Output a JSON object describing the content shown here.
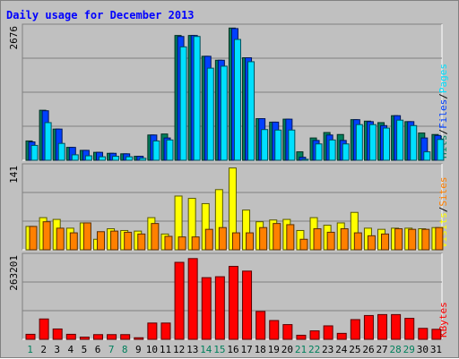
{
  "title": "Daily usage for December 2013",
  "colors": {
    "background": "#c0c0c0",
    "title": "#0000ff",
    "hits": "#00805c",
    "files": "#0040ff",
    "pages": "#00e0ff",
    "visits": "#ffff00",
    "sites": "#ff8000",
    "kbytes": "#ff0000",
    "weekend_day": "#00805c",
    "weekday_day": "#000000"
  },
  "chart_data": [
    {
      "type": "bar",
      "title": "Daily usage for December 2013",
      "panel": "hits-files-pages",
      "ymax_label": "2676",
      "ymax": 2676,
      "legend": [
        "Pages",
        "/",
        "Files",
        "/",
        "Hits"
      ],
      "categories": [
        "1",
        "2",
        "3",
        "4",
        "5",
        "6",
        "7",
        "8",
        "9",
        "10",
        "11",
        "12",
        "13",
        "14",
        "15",
        "16",
        "17",
        "18",
        "19",
        "20",
        "21",
        "22",
        "23",
        "24",
        "25",
        "26",
        "27",
        "28",
        "29",
        "30",
        "31"
      ],
      "series": [
        {
          "name": "Hits",
          "values": [
            390,
            1010,
            630,
            260,
            200,
            160,
            140,
            130,
            80,
            510,
            530,
            2520,
            2520,
            2100,
            2020,
            2670,
            2070,
            840,
            770,
            830,
            170,
            450,
            560,
            520,
            820,
            790,
            760,
            900,
            780,
            550,
            520
          ]
        },
        {
          "name": "Files",
          "values": [
            370,
            1000,
            630,
            260,
            200,
            160,
            140,
            130,
            80,
            510,
            450,
            2500,
            2520,
            2100,
            2020,
            2660,
            2070,
            840,
            770,
            830,
            60,
            400,
            510,
            400,
            820,
            780,
            700,
            900,
            780,
            450,
            500
          ]
        },
        {
          "name": "Pages",
          "values": [
            300,
            760,
            340,
            110,
            90,
            70,
            80,
            70,
            40,
            390,
            410,
            2290,
            2500,
            1860,
            1900,
            2440,
            1990,
            620,
            610,
            610,
            20,
            330,
            410,
            330,
            720,
            720,
            650,
            810,
            700,
            170,
            420
          ]
        }
      ]
    },
    {
      "type": "bar",
      "panel": "visits-sites",
      "ymax_label": "141",
      "ymax": 141,
      "legend": [
        "Sites",
        "/",
        "Visits"
      ],
      "categories": [
        "1",
        "2",
        "3",
        "4",
        "5",
        "6",
        "7",
        "8",
        "9",
        "10",
        "11",
        "12",
        "13",
        "14",
        "15",
        "16",
        "17",
        "18",
        "19",
        "20",
        "21",
        "22",
        "23",
        "24",
        "25",
        "26",
        "27",
        "28",
        "29",
        "30",
        "31"
      ],
      "series": [
        {
          "name": "Visits",
          "values": [
            40,
            55,
            52,
            37,
            46,
            18,
            36,
            33,
            32,
            55,
            27,
            92,
            88,
            79,
            103,
            140,
            68,
            48,
            51,
            52,
            33,
            55,
            42,
            46,
            64,
            37,
            35,
            37,
            37,
            36,
            38
          ]
        },
        {
          "name": "Sites",
          "values": [
            40,
            48,
            37,
            29,
            46,
            31,
            32,
            30,
            27,
            45,
            23,
            22,
            22,
            35,
            38,
            29,
            29,
            38,
            45,
            43,
            18,
            36,
            30,
            36,
            29,
            24,
            27,
            36,
            35,
            35,
            38
          ]
        }
      ]
    },
    {
      "type": "bar",
      "panel": "kbytes",
      "ymax_label": "263201",
      "ymax": 263201,
      "legend": [
        "KBytes"
      ],
      "categories": [
        "1",
        "2",
        "3",
        "4",
        "5",
        "6",
        "7",
        "8",
        "9",
        "10",
        "11",
        "12",
        "13",
        "14",
        "15",
        "16",
        "17",
        "18",
        "19",
        "20",
        "21",
        "22",
        "23",
        "24",
        "25",
        "26",
        "27",
        "28",
        "29",
        "30",
        "31"
      ],
      "series": [
        {
          "name": "KBytes",
          "values": [
            16000,
            65000,
            33000,
            16000,
            7000,
            15000,
            15000,
            15000,
            5000,
            52000,
            52000,
            246000,
            258000,
            197000,
            200000,
            233000,
            218000,
            89000,
            60000,
            47000,
            13000,
            27000,
            43000,
            19000,
            63000,
            76000,
            79000,
            79000,
            67000,
            35000,
            32000
          ]
        }
      ]
    }
  ],
  "weekend_days": [
    1,
    7,
    8,
    14,
    15,
    21,
    22,
    28,
    29
  ]
}
